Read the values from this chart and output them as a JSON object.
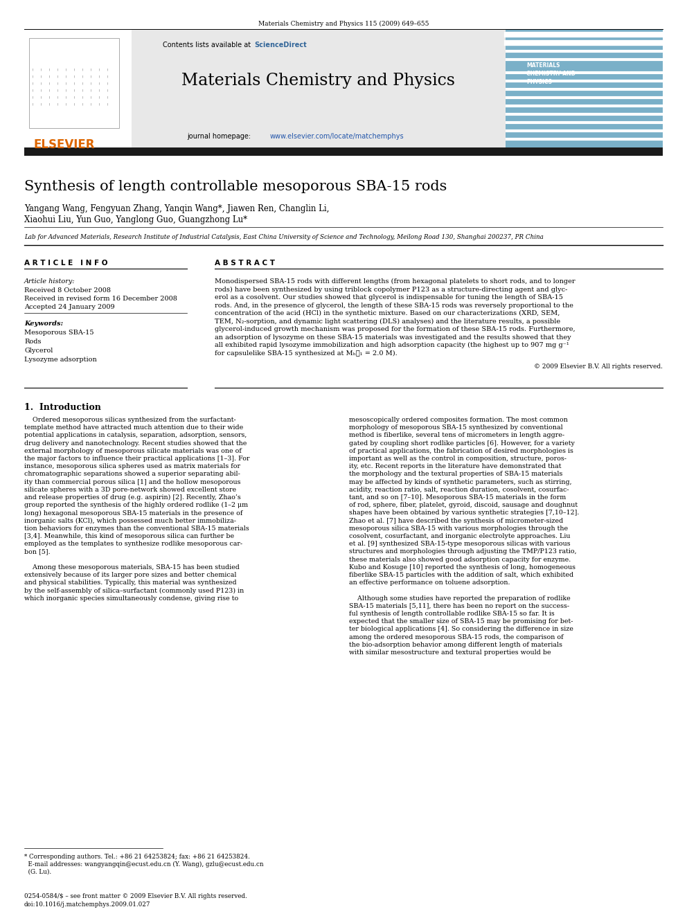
{
  "page_title": "Materials Chemistry and Physics 115 (2009) 649–655",
  "journal_name": "Materials Chemistry and Physics",
  "journal_url": "www.elsevier.com/locate/matchemphys",
  "paper_title": "Synthesis of length controllable mesoporous SBA-15 rods",
  "authors_line1": "Yangang Wang, Fengyuan Zhang, Yanqin Wang*, Jiawen Ren, Changlin Li,",
  "authors_line2": "Xiaohui Liu, Yun Guo, Yanglong Guo, Guangzhong Lu*",
  "affiliation": "Lab for Advanced Materials, Research Institute of Industrial Catalysis, East China University of Science and Technology, Meilong Road 130, Shanghai 200237, PR China",
  "article_info_header": "A R T I C L E   I N F O",
  "abstract_header": "A B S T R A C T",
  "article_history_label": "Article history:",
  "received1": "Received 8 October 2008",
  "received2": "Received in revised form 16 December 2008",
  "accepted": "Accepted 24 January 2009",
  "keywords_label": "Keywords:",
  "keywords": [
    "Mesoporous SBA-15",
    "Rods",
    "Glycerol",
    "Lysozyme adsorption"
  ],
  "abstract_lines": [
    "Monodispersed SBA-15 rods with different lengths (from hexagonal platelets to short rods, and to longer",
    "rods) have been synthesized by using triblock copolymer P123 as a structure-directing agent and glyc-",
    "erol as a cosolvent. Our studies showed that glycerol is indispensable for tuning the length of SBA-15",
    "rods. And, in the presence of glycerol, the length of these SBA-15 rods was reversely proportional to the",
    "concentration of the acid (HCl) in the synthetic mixture. Based on our characterizations (XRD, SEM,",
    "TEM, N₂-sorption, and dynamic light scattering (DLS) analyses) and the literature results, a possible",
    "glycerol-induced growth mechanism was proposed for the formation of these SBA-15 rods. Furthermore,",
    "an adsorption of lysozyme on these SBA-15 materials was investigated and the results showed that they",
    "all exhibited rapid lysozyme immobilization and high adsorption capacity (the highest up to 907 mg g⁻¹",
    "for capsulelike SBA-15 synthesized at Mₕ⁃₁ = 2.0 M)."
  ],
  "copyright": "© 2009 Elsevier B.V. All rights reserved.",
  "section1_title": "1.  Introduction",
  "left_col_lines": [
    "    Ordered mesoporous silicas synthesized from the surfactant-",
    "template method have attracted much attention due to their wide",
    "potential applications in catalysis, separation, adsorption, sensors,",
    "drug delivery and nanotechnology. Recent studies showed that the",
    "external morphology of mesoporous silicate materials was one of",
    "the major factors to influence their practical applications [1–3]. For",
    "instance, mesoporous silica spheres used as matrix materials for",
    "chromatographic separations showed a superior separating abil-",
    "ity than commercial porous silica [1] and the hollow mesoporous",
    "silicate spheres with a 3D pore-network showed excellent store",
    "and release properties of drug (e.g. aspirin) [2]. Recently, Zhao’s",
    "group reported the synthesis of the highly ordered rodlike (1–2 μm",
    "long) hexagonal mesoporous SBA-15 materials in the presence of",
    "inorganic salts (KCl), which possessed much better immobiliza-",
    "tion behaviors for enzymes than the conventional SBA-15 materials",
    "[3,4]. Meanwhile, this kind of mesoporous silica can further be",
    "employed as the templates to synthesize rodlike mesoporous car-",
    "bon [5].",
    "",
    "    Among these mesoporous materials, SBA-15 has been studied",
    "extensively because of its larger pore sizes and better chemical",
    "and physical stabilities. Typically, this material was synthesized",
    "by the self-assembly of silica–surfactant (commonly used P123) in",
    "which inorganic species simultaneously condense, giving rise to"
  ],
  "right_col_lines": [
    "mesoscopically ordered composites formation. The most common",
    "morphology of mesoporous SBA-15 synthesized by conventional",
    "method is fiberlike, several tens of micrometers in length aggre-",
    "gated by coupling short rodlike particles [6]. However, for a variety",
    "of practical applications, the fabrication of desired morphologies is",
    "important as well as the control in composition, structure, poros-",
    "ity, etc. Recent reports in the literature have demonstrated that",
    "the morphology and the textural properties of SBA-15 materials",
    "may be affected by kinds of synthetic parameters, such as stirring,",
    "acidity, reaction ratio, salt, reaction duration, cosolvent, cosurfac-",
    "tant, and so on [7–10]. Mesoporous SBA-15 materials in the form",
    "of rod, sphere, fiber, platelet, gyroid, discoid, sausage and doughnut",
    "shapes have been obtained by various synthetic strategies [7,10–12].",
    "Zhao et al. [7] have described the synthesis of micrometer-sized",
    "mesoporous silica SBA-15 with various morphologies through the",
    "cosolvent, cosurfactant, and inorganic electrolyte approaches. Liu",
    "et al. [9] synthesized SBA-15-type mesoporous silicas with various",
    "structures and morphologies through adjusting the TMP/P123 ratio,",
    "these materials also showed good adsorption capacity for enzyme.",
    "Kubo and Kosuge [10] reported the synthesis of long, homogeneous",
    "fiberlike SBA-15 particles with the addition of salt, which exhibited",
    "an effective performance on toluene adsorption.",
    "",
    "    Although some studies have reported the preparation of rodlike",
    "SBA-15 materials [5,11], there has been no report on the success-",
    "ful synthesis of length controllable rodlike SBA-15 so far. It is",
    "expected that the smaller size of SBA-15 may be promising for bet-",
    "ter biological applications [4]. So considering the difference in size",
    "among the ordered mesoporous SBA-15 rods, the comparison of",
    "the bio-adsorption behavior among different length of materials",
    "with similar mesostructure and textural properties would be"
  ],
  "footnote_line1": "* Corresponding authors. Tel.: +86 21 64253824; fax: +86 21 64253824.",
  "footnote_line2": "  E-mail addresses: wangyangqin@ecust.edu.cn (Y. Wang), gzlu@ecust.edu.cn",
  "footnote_line3": "  (G. Lu).",
  "bottom_line1": "0254-0584/$ – see front matter © 2009 Elsevier B.V. All rights reserved.",
  "bottom_line2": "doi:10.1016/j.matchemphys.2009.01.027",
  "header_bg": "#e8e8e8",
  "dark_bar_color": "#1a1a1a",
  "blue_color": "#2255aa",
  "sciencedirect_color": "#336699",
  "orange_color": "#dd6600",
  "cover_bg": "#7ab0c8",
  "cover_dark": "#3a6080"
}
